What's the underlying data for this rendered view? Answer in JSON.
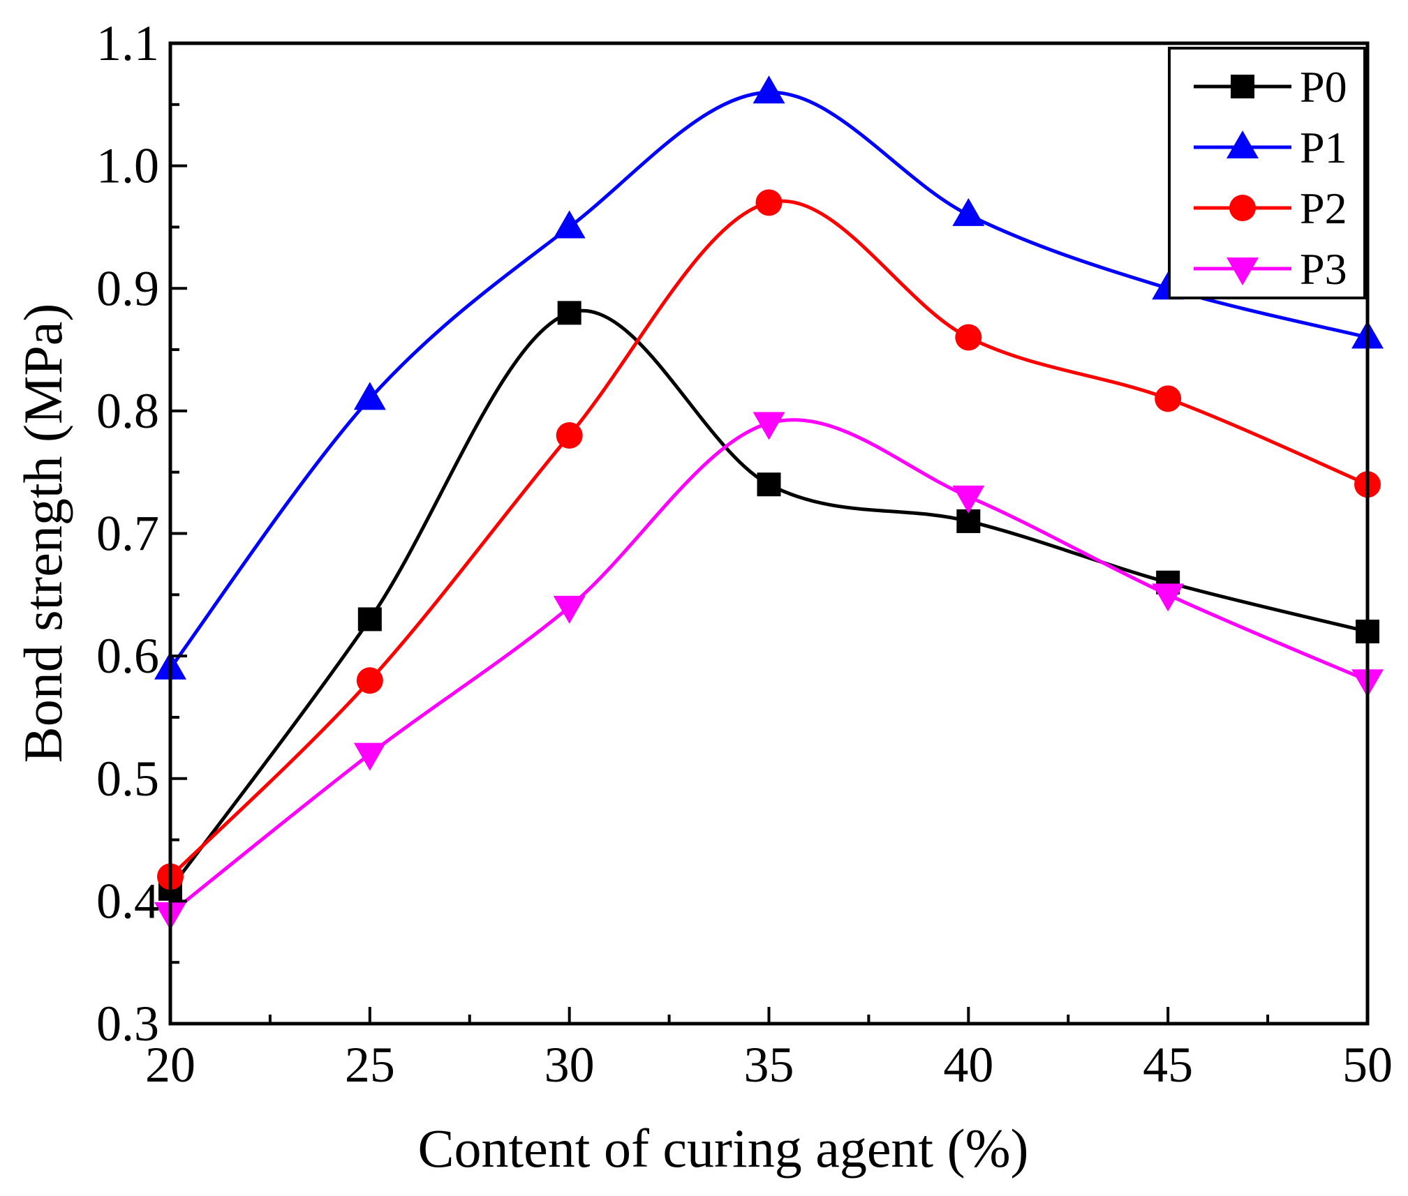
{
  "chart_data": {
    "type": "line",
    "title": "",
    "xlabel": "Content of curing agent (%)",
    "ylabel": "Bond strength (MPa)",
    "xlim": [
      20,
      50
    ],
    "ylim": [
      0.3,
      1.1
    ],
    "x": [
      20,
      25,
      30,
      35,
      40,
      45,
      50
    ],
    "x_ticks": [
      "20",
      "25",
      "30",
      "35",
      "40",
      "45",
      "50"
    ],
    "y_ticks": [
      "0.3",
      "0.4",
      "0.5",
      "0.6",
      "0.7",
      "0.8",
      "0.9",
      "1.0",
      "1.1"
    ],
    "grid": false,
    "smooth": true,
    "legend_position": "top-right",
    "series": [
      {
        "name": "P0",
        "color": "#000000",
        "marker": "square",
        "values": [
          0.41,
          0.63,
          0.88,
          0.74,
          0.71,
          0.66,
          0.62
        ]
      },
      {
        "name": "P1",
        "color": "#0000ff",
        "marker": "triangle-up",
        "values": [
          0.59,
          0.81,
          0.95,
          1.06,
          0.96,
          0.9,
          0.86
        ]
      },
      {
        "name": "P2",
        "color": "#ff0000",
        "marker": "circle",
        "values": [
          0.42,
          0.58,
          0.78,
          0.97,
          0.86,
          0.81,
          0.74
        ]
      },
      {
        "name": "P3",
        "color": "#ff00ff",
        "marker": "triangle-down",
        "values": [
          0.39,
          0.52,
          0.64,
          0.79,
          0.73,
          0.65,
          0.58
        ]
      }
    ]
  }
}
